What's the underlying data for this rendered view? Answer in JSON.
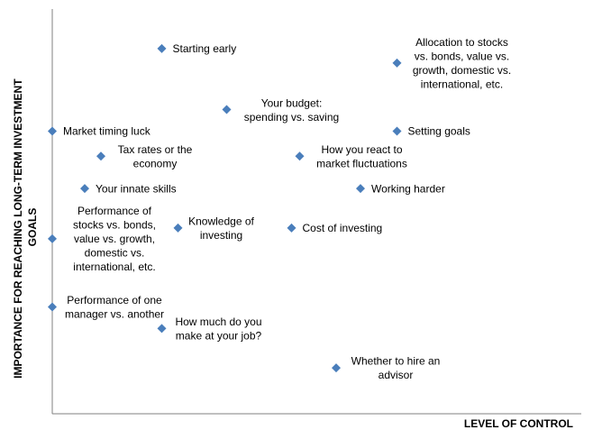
{
  "chart_data": {
    "type": "scatter",
    "xlabel": "LEVEL OF CONTROL",
    "ylabel": "IMPORTANCE FOR REACHING LONG-TERM INVESTMENT GOALS",
    "xlim": [
      0,
      10
    ],
    "ylim": [
      0,
      10
    ],
    "grid": false,
    "legend": "none",
    "marker_color": "#4a7ebb",
    "points": [
      {
        "x": 2.7,
        "y": 9.5,
        "label": "Starting early",
        "label_pos": "right"
      },
      {
        "x": 8.5,
        "y": 9.1,
        "label": "Allocation to stocks\nvs. bonds, value vs.\ngrowth, domestic vs.\ninternational, etc.",
        "label_pos": "right"
      },
      {
        "x": 4.3,
        "y": 7.8,
        "label": "Your budget:\nspending vs. saving",
        "label_pos": "below-right"
      },
      {
        "x": 0.0,
        "y": 7.2,
        "label": "Market timing luck",
        "label_pos": "right"
      },
      {
        "x": 8.5,
        "y": 7.2,
        "label": "Setting goals",
        "label_pos": "right"
      },
      {
        "x": 1.2,
        "y": 6.5,
        "label": "Tax rates or the\neconomy",
        "label_pos": "right"
      },
      {
        "x": 6.1,
        "y": 6.5,
        "label": "How you react to\nmarket fluctuations",
        "label_pos": "right"
      },
      {
        "x": 0.8,
        "y": 5.6,
        "label": "Your innate skills",
        "label_pos": "right"
      },
      {
        "x": 7.6,
        "y": 5.6,
        "label": "Working harder",
        "label_pos": "right"
      },
      {
        "x": 3.1,
        "y": 4.5,
        "label": "Knowledge of\ninvesting",
        "label_pos": "right"
      },
      {
        "x": 5.9,
        "y": 4.5,
        "label": "Cost of investing",
        "label_pos": "right"
      },
      {
        "x": 0.0,
        "y": 4.2,
        "label": "Performance of\nstocks vs. bonds,\nvalue vs. growth,\ndomestic vs.\ninternational, etc.",
        "label_pos": "right"
      },
      {
        "x": 0.0,
        "y": 2.3,
        "label": "Performance of one\nmanager vs. another",
        "label_pos": "right"
      },
      {
        "x": 2.7,
        "y": 1.7,
        "label": "How much do you\nmake at your job?",
        "label_pos": "right"
      },
      {
        "x": 7.0,
        "y": 0.6,
        "label": "Whether to hire an\nadvisor",
        "label_pos": "right"
      }
    ]
  }
}
